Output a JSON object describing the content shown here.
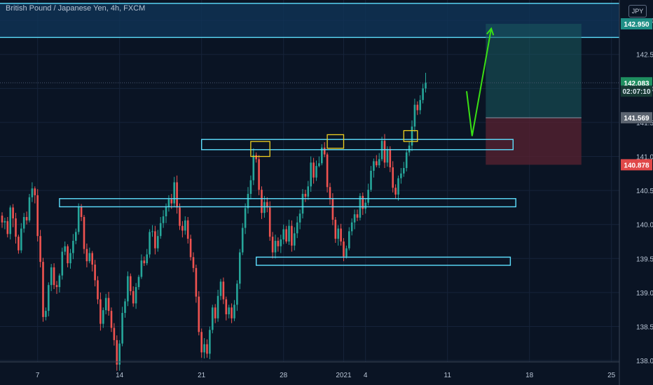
{
  "header": {
    "title": "British Pound / Japanese Yen, 4h, FXCM",
    "currency_button": "JPY"
  },
  "colors": {
    "background": "#0a1424",
    "grid": "#16233a",
    "axis_text": "#b8c4d4",
    "bull": "#26a69a",
    "bear": "#ef5350",
    "zone": "#5ee0ff",
    "box": "#f0d020",
    "arrow": "#39e014",
    "target_fill": "#1a5a5e",
    "stop_fill": "#5a2230"
  },
  "chart_data": {
    "type": "candlestick",
    "symbol": "GBPJPY",
    "timeframe": "4h",
    "y_ticks": [
      "143.000",
      "142.500",
      "142.000",
      "141.500",
      "141.000",
      "140.500",
      "140.000",
      "139.500",
      "139.000",
      "138.500",
      "138.000"
    ],
    "x_ticks": [
      {
        "label": "7",
        "bar": 13
      },
      {
        "label": "14",
        "bar": 43
      },
      {
        "label": "21",
        "bar": 73
      },
      {
        "label": "28",
        "bar": 103
      },
      {
        "label": "2021",
        "bar": 125
      },
      {
        "label": "4",
        "bar": 133
      },
      {
        "label": "11",
        "bar": 163
      },
      {
        "label": "18",
        "bar": 193
      },
      {
        "label": "25",
        "bar": 223
      }
    ],
    "ylim": [
      137.98,
      143.3
    ],
    "price_labels": [
      {
        "value": 142.95,
        "text": "142.950",
        "style": "teal"
      },
      {
        "value": 142.083,
        "text": "142.083",
        "style": "green"
      },
      {
        "value": 141.96,
        "text": "02:07:10",
        "style": "timer"
      },
      {
        "value": 141.569,
        "text": "141.569",
        "style": "gray"
      },
      {
        "value": 140.878,
        "text": "140.878",
        "style": "red"
      }
    ],
    "resistance_zone": {
      "top": 143.25,
      "bottom": 142.75
    },
    "consolidation_zones": [
      {
        "start_bar": 73,
        "end_bar": 187,
        "top": 141.25,
        "bottom": 141.1
      },
      {
        "start_bar": 21,
        "end_bar": 188,
        "top": 140.38,
        "bottom": 140.26
      },
      {
        "start_bar": 93,
        "end_bar": 186,
        "top": 139.52,
        "bottom": 139.4
      }
    ],
    "highlight_boxes": [
      {
        "start_bar": 91,
        "end_bar": 98,
        "top": 141.22,
        "bottom": 141.0
      },
      {
        "start_bar": 119,
        "end_bar": 125,
        "top": 141.32,
        "bottom": 141.12
      },
      {
        "start_bar": 147,
        "end_bar": 152,
        "top": 141.38,
        "bottom": 141.22
      }
    ],
    "forecast_path": [
      {
        "bar": 170,
        "value": 141.96
      },
      {
        "bar": 172,
        "value": 141.3
      },
      {
        "bar": 179,
        "value": 142.88
      }
    ],
    "position": {
      "start_bar": 177,
      "end_bar": 212,
      "entry": 141.569,
      "target": 142.95,
      "stop": 140.878
    },
    "last_price": 142.083,
    "candles": [
      [
        140.13,
        140.03,
        140.18,
        139.95
      ],
      [
        140.03,
        140.05,
        140.1,
        139.93
      ],
      [
        140.05,
        139.86,
        140.11,
        139.81
      ],
      [
        139.86,
        140.25,
        140.28,
        139.78
      ],
      [
        140.25,
        140.09,
        140.3,
        139.96
      ],
      [
        140.09,
        139.82,
        140.17,
        139.72
      ],
      [
        139.82,
        139.62,
        139.85,
        139.57
      ],
      [
        139.62,
        139.94,
        140.02,
        139.58
      ],
      [
        139.94,
        140.11,
        140.17,
        139.88
      ],
      [
        140.11,
        140.06,
        140.19,
        140.0
      ],
      [
        140.06,
        140.4,
        140.45,
        140.03
      ],
      [
        140.4,
        140.53,
        140.62,
        140.33
      ],
      [
        140.53,
        140.43,
        140.56,
        140.31
      ],
      [
        140.43,
        139.83,
        140.52,
        139.75
      ],
      [
        139.83,
        139.45,
        139.92,
        139.37
      ],
      [
        139.45,
        138.64,
        139.51,
        138.57
      ],
      [
        138.64,
        138.73,
        138.78,
        138.59
      ],
      [
        138.73,
        139.11,
        139.15,
        138.65
      ],
      [
        139.11,
        139.37,
        139.42,
        139.02
      ],
      [
        139.37,
        139.11,
        139.43,
        139.05
      ],
      [
        139.11,
        139.08,
        139.17,
        138.98
      ],
      [
        139.08,
        139.25,
        139.28,
        139.0
      ],
      [
        139.25,
        139.6,
        139.66,
        139.19
      ],
      [
        139.6,
        139.68,
        139.75,
        139.55
      ],
      [
        139.68,
        139.43,
        139.71,
        139.37
      ],
      [
        139.43,
        139.58,
        139.64,
        139.35
      ],
      [
        139.58,
        139.76,
        139.86,
        139.49
      ],
      [
        139.76,
        139.89,
        139.94,
        139.71
      ],
      [
        139.89,
        140.26,
        140.31,
        139.85
      ],
      [
        140.26,
        140.11,
        140.3,
        140.05
      ],
      [
        140.11,
        139.64,
        140.14,
        139.57
      ],
      [
        139.64,
        139.46,
        139.72,
        139.37
      ],
      [
        139.46,
        139.58,
        139.66,
        139.43
      ],
      [
        139.58,
        139.41,
        139.61,
        139.31
      ],
      [
        139.41,
        139.18,
        139.48,
        139.09
      ],
      [
        139.18,
        138.9,
        139.24,
        138.83
      ],
      [
        138.9,
        138.54,
        139.0,
        138.44
      ],
      [
        138.54,
        138.74,
        138.78,
        138.48
      ],
      [
        138.74,
        138.92,
        138.98,
        138.68
      ],
      [
        138.92,
        138.73,
        139.01,
        138.66
      ],
      [
        138.73,
        138.48,
        138.78,
        138.42
      ],
      [
        138.48,
        138.3,
        138.55,
        138.22
      ],
      [
        138.3,
        137.94,
        138.37,
        137.85
      ],
      [
        137.94,
        138.25,
        138.3,
        137.85
      ],
      [
        138.25,
        138.7,
        138.79,
        138.21
      ],
      [
        138.7,
        138.87,
        138.91,
        138.63
      ],
      [
        138.87,
        139.24,
        139.31,
        138.8
      ],
      [
        139.24,
        139.02,
        139.28,
        138.96
      ],
      [
        139.02,
        138.84,
        139.09,
        138.79
      ],
      [
        138.84,
        139.08,
        139.14,
        138.76
      ],
      [
        139.08,
        139.23,
        139.26,
        139.04
      ],
      [
        139.23,
        139.47,
        139.56,
        139.2
      ],
      [
        139.47,
        139.43,
        139.53,
        139.39
      ],
      [
        139.43,
        139.56,
        139.64,
        139.4
      ],
      [
        139.56,
        139.89,
        139.93,
        139.51
      ],
      [
        139.89,
        139.9,
        139.99,
        139.82
      ],
      [
        139.9,
        139.65,
        139.98,
        139.56
      ],
      [
        139.65,
        139.83,
        139.92,
        139.6
      ],
      [
        139.83,
        140.02,
        140.11,
        139.79
      ],
      [
        140.02,
        140.12,
        140.21,
        139.95
      ],
      [
        140.12,
        140.26,
        140.31,
        140.02
      ],
      [
        140.26,
        140.37,
        140.43,
        140.19
      ],
      [
        140.37,
        140.31,
        140.45,
        140.23
      ],
      [
        140.31,
        140.62,
        140.7,
        140.26
      ],
      [
        140.62,
        140.25,
        140.72,
        140.16
      ],
      [
        140.25,
        139.98,
        140.31,
        139.92
      ],
      [
        139.98,
        139.91,
        140.05,
        139.81
      ],
      [
        139.91,
        140.06,
        140.12,
        139.85
      ],
      [
        140.06,
        139.79,
        140.11,
        139.72
      ],
      [
        139.79,
        139.52,
        139.85,
        139.47
      ],
      [
        139.52,
        139.36,
        139.59,
        139.3
      ],
      [
        139.36,
        138.94,
        139.41,
        138.85
      ],
      [
        138.94,
        138.42,
        139.02,
        138.37
      ],
      [
        138.42,
        138.12,
        138.47,
        138.04
      ],
      [
        138.12,
        138.24,
        138.33,
        138.03
      ],
      [
        138.24,
        138.1,
        138.31,
        138.04
      ],
      [
        138.1,
        138.45,
        138.5,
        138.02
      ],
      [
        138.45,
        138.78,
        138.82,
        138.4
      ],
      [
        138.78,
        138.62,
        138.83,
        138.55
      ],
      [
        138.62,
        138.95,
        139.04,
        138.57
      ],
      [
        138.95,
        139.16,
        139.2,
        138.89
      ],
      [
        139.16,
        138.9,
        139.22,
        138.83
      ],
      [
        138.9,
        138.68,
        138.94,
        138.59
      ],
      [
        138.68,
        138.78,
        138.82,
        138.62
      ],
      [
        138.78,
        138.62,
        138.84,
        138.55
      ],
      [
        138.62,
        138.82,
        138.89,
        138.58
      ],
      [
        138.82,
        139.13,
        139.18,
        138.73
      ],
      [
        139.13,
        139.59,
        139.64,
        139.05
      ],
      [
        139.59,
        139.95,
        140.02,
        139.55
      ],
      [
        139.95,
        140.24,
        140.31,
        139.86
      ],
      [
        140.24,
        140.45,
        140.55,
        140.16
      ],
      [
        140.45,
        140.65,
        140.72,
        140.37
      ],
      [
        140.65,
        141.02,
        141.12,
        140.58
      ],
      [
        141.02,
        140.96,
        141.06,
        140.91
      ],
      [
        140.96,
        140.51,
        141.02,
        140.43
      ],
      [
        140.51,
        140.17,
        140.56,
        140.08
      ],
      [
        140.17,
        140.33,
        140.42,
        140.1
      ],
      [
        140.33,
        140.25,
        140.4,
        140.18
      ],
      [
        140.25,
        139.82,
        140.34,
        139.76
      ],
      [
        139.82,
        139.59,
        139.89,
        139.5
      ],
      [
        139.59,
        139.76,
        139.85,
        139.5
      ],
      [
        139.76,
        139.68,
        139.81,
        139.6
      ],
      [
        139.68,
        139.78,
        139.85,
        139.58
      ],
      [
        139.78,
        139.93,
        140.0,
        139.71
      ],
      [
        139.93,
        139.75,
        139.98,
        139.72
      ],
      [
        139.75,
        139.98,
        140.07,
        139.7
      ],
      [
        139.98,
        139.69,
        140.06,
        139.6
      ],
      [
        139.69,
        139.87,
        139.96,
        139.62
      ],
      [
        139.87,
        140.03,
        140.12,
        139.8
      ],
      [
        140.03,
        140.16,
        140.22,
        139.93
      ],
      [
        140.16,
        140.45,
        140.52,
        140.09
      ],
      [
        140.45,
        140.41,
        140.51,
        140.33
      ],
      [
        140.41,
        140.56,
        140.64,
        140.36
      ],
      [
        140.56,
        140.91,
        141.0,
        140.48
      ],
      [
        140.91,
        140.69,
        140.98,
        140.6
      ],
      [
        140.69,
        140.86,
        140.94,
        140.64
      ],
      [
        140.86,
        140.9,
        141.0,
        140.84
      ],
      [
        140.9,
        141.13,
        141.18,
        140.87
      ],
      [
        141.13,
        141.03,
        141.21,
        140.99
      ],
      [
        141.03,
        140.55,
        141.06,
        140.47
      ],
      [
        140.55,
        140.38,
        140.61,
        140.29
      ],
      [
        140.38,
        140.07,
        140.46,
        139.99
      ],
      [
        140.07,
        139.79,
        140.11,
        139.73
      ],
      [
        139.79,
        139.94,
        139.99,
        139.69
      ],
      [
        139.94,
        139.75,
        140.01,
        139.69
      ],
      [
        139.75,
        139.53,
        139.8,
        139.46
      ],
      [
        139.53,
        139.65,
        139.69,
        139.5
      ],
      [
        139.65,
        139.9,
        139.96,
        139.62
      ],
      [
        139.9,
        140.03,
        140.09,
        139.84
      ],
      [
        140.03,
        140.15,
        140.22,
        139.93
      ],
      [
        140.15,
        140.1,
        140.22,
        140.05
      ],
      [
        140.1,
        140.42,
        140.46,
        140.06
      ],
      [
        140.42,
        140.23,
        140.47,
        140.14
      ],
      [
        140.23,
        140.32,
        140.38,
        140.16
      ],
      [
        140.32,
        140.51,
        140.6,
        140.28
      ],
      [
        140.51,
        140.79,
        140.86,
        140.48
      ],
      [
        140.79,
        140.93,
        140.97,
        140.69
      ],
      [
        140.93,
        140.87,
        141.02,
        140.84
      ],
      [
        140.87,
        140.96,
        141.05,
        140.83
      ],
      [
        140.96,
        141.23,
        141.29,
        140.93
      ],
      [
        141.23,
        140.91,
        141.33,
        140.83
      ],
      [
        140.91,
        141.11,
        141.15,
        140.85
      ],
      [
        141.11,
        140.84,
        141.15,
        140.77
      ],
      [
        140.84,
        140.54,
        140.93,
        140.47
      ],
      [
        140.54,
        140.44,
        140.59,
        140.38
      ],
      [
        140.44,
        140.68,
        140.72,
        140.35
      ],
      [
        140.68,
        140.75,
        140.83,
        140.6
      ],
      [
        140.75,
        140.83,
        140.92,
        140.7
      ],
      [
        140.83,
        141.06,
        141.11,
        140.78
      ],
      [
        141.06,
        141.16,
        141.22,
        141.01
      ],
      [
        141.16,
        141.44,
        141.53,
        141.08
      ],
      [
        141.44,
        141.76,
        141.85,
        141.36
      ],
      [
        141.76,
        141.68,
        141.81,
        141.61
      ],
      [
        141.68,
        141.83,
        141.9,
        141.62
      ],
      [
        141.83,
        142.0,
        142.07,
        141.78
      ],
      [
        142.0,
        142.083,
        142.23,
        141.94
      ]
    ]
  }
}
